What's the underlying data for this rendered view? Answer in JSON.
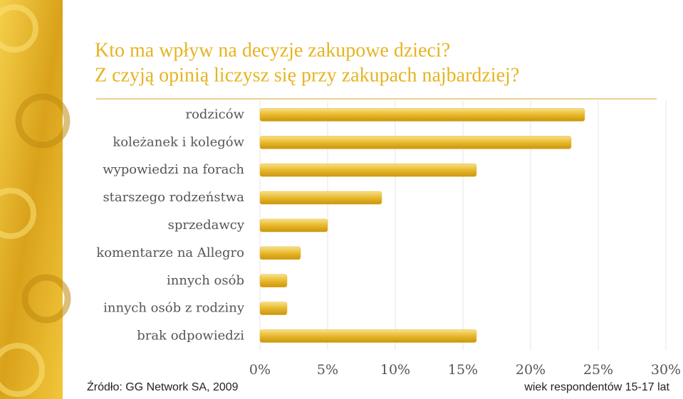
{
  "chart_data": {
    "type": "bar",
    "orientation": "horizontal",
    "title": "Kto ma wpływ na decyzje zakupowe dzieci?",
    "subtitle": "Z czyją opinią liczysz się przy zakupach najbardziej?",
    "categories": [
      "rodziców",
      "koleżanek i kolegów",
      "wypowiedzi na forach",
      "starszego rodzeństwa",
      "sprzedawcy",
      "komentarze na Allegro",
      "innych osób",
      "innych osób z rodziny",
      "brak odpowiedzi"
    ],
    "values": [
      24,
      23,
      16,
      9,
      5,
      3,
      2,
      2,
      16
    ],
    "color": "#e8b82a",
    "xlim": [
      0,
      30
    ],
    "xticks": [
      {
        "value": 0,
        "label": "0%"
      },
      {
        "value": 5,
        "label": "5%"
      },
      {
        "value": 10,
        "label": "10%"
      },
      {
        "value": 15,
        "label": "15%"
      },
      {
        "value": 20,
        "label": "20%"
      },
      {
        "value": 25,
        "label": "25%"
      },
      {
        "value": 30,
        "label": "30%"
      }
    ],
    "grid": true,
    "source": "Źródło: GG Network SA, 2009",
    "note": "wiek respondentów 15-17 lat"
  }
}
